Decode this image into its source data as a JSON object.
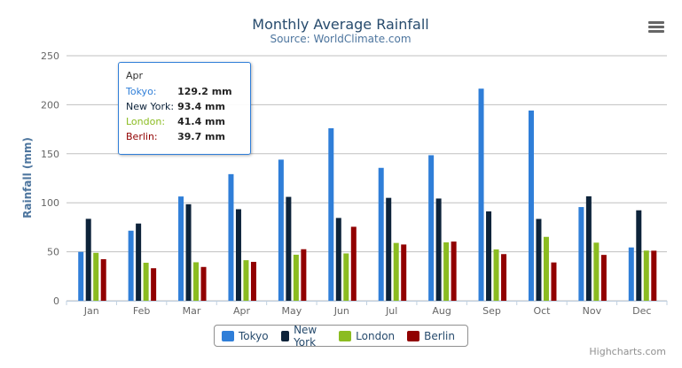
{
  "chart_data": {
    "type": "bar",
    "title": "Monthly Average Rainfall",
    "subtitle": "Source: WorldClimate.com",
    "xlabel": "",
    "ylabel": "Rainfall (mm)",
    "ylim": [
      0,
      250
    ],
    "yticks": [
      0,
      50,
      100,
      150,
      200,
      250
    ],
    "grid": true,
    "legend_placement": "bottom",
    "categories": [
      "Jan",
      "Feb",
      "Mar",
      "Apr",
      "May",
      "Jun",
      "Jul",
      "Aug",
      "Sep",
      "Oct",
      "Nov",
      "Dec"
    ],
    "series": [
      {
        "name": "Tokyo",
        "color": "#2f7ed8",
        "values": [
          49.9,
          71.5,
          106.4,
          129.2,
          144.0,
          176.0,
          135.6,
          148.5,
          216.4,
          194.1,
          95.6,
          54.4
        ]
      },
      {
        "name": "New York",
        "color": "#0d233a",
        "values": [
          83.6,
          78.8,
          98.5,
          93.4,
          106.0,
          84.5,
          105.0,
          104.3,
          91.2,
          83.5,
          106.6,
          92.3
        ]
      },
      {
        "name": "London",
        "color": "#8bbc21",
        "values": [
          48.9,
          38.8,
          39.3,
          41.4,
          47.0,
          48.3,
          59.0,
          59.6,
          52.4,
          65.2,
          59.3,
          51.2
        ]
      },
      {
        "name": "Berlin",
        "color": "#910000",
        "values": [
          42.4,
          33.2,
          34.5,
          39.7,
          52.6,
          75.5,
          57.4,
          60.4,
          47.6,
          39.1,
          46.8,
          51.1
        ]
      }
    ]
  },
  "tooltip": {
    "header": "Apr",
    "rows": [
      {
        "label": "Tokyo:",
        "value": "129.2 mm",
        "color": "#2f7ed8"
      },
      {
        "label": "New York:",
        "value": "93.4 mm",
        "color": "#0d233a"
      },
      {
        "label": "London:",
        "value": "41.4 mm",
        "color": "#8bbc21"
      },
      {
        "label": "Berlin:",
        "value": "39.7 mm",
        "color": "#910000"
      }
    ]
  },
  "credits": "Highcharts.com",
  "menu_icon": "hamburger-menu-icon"
}
